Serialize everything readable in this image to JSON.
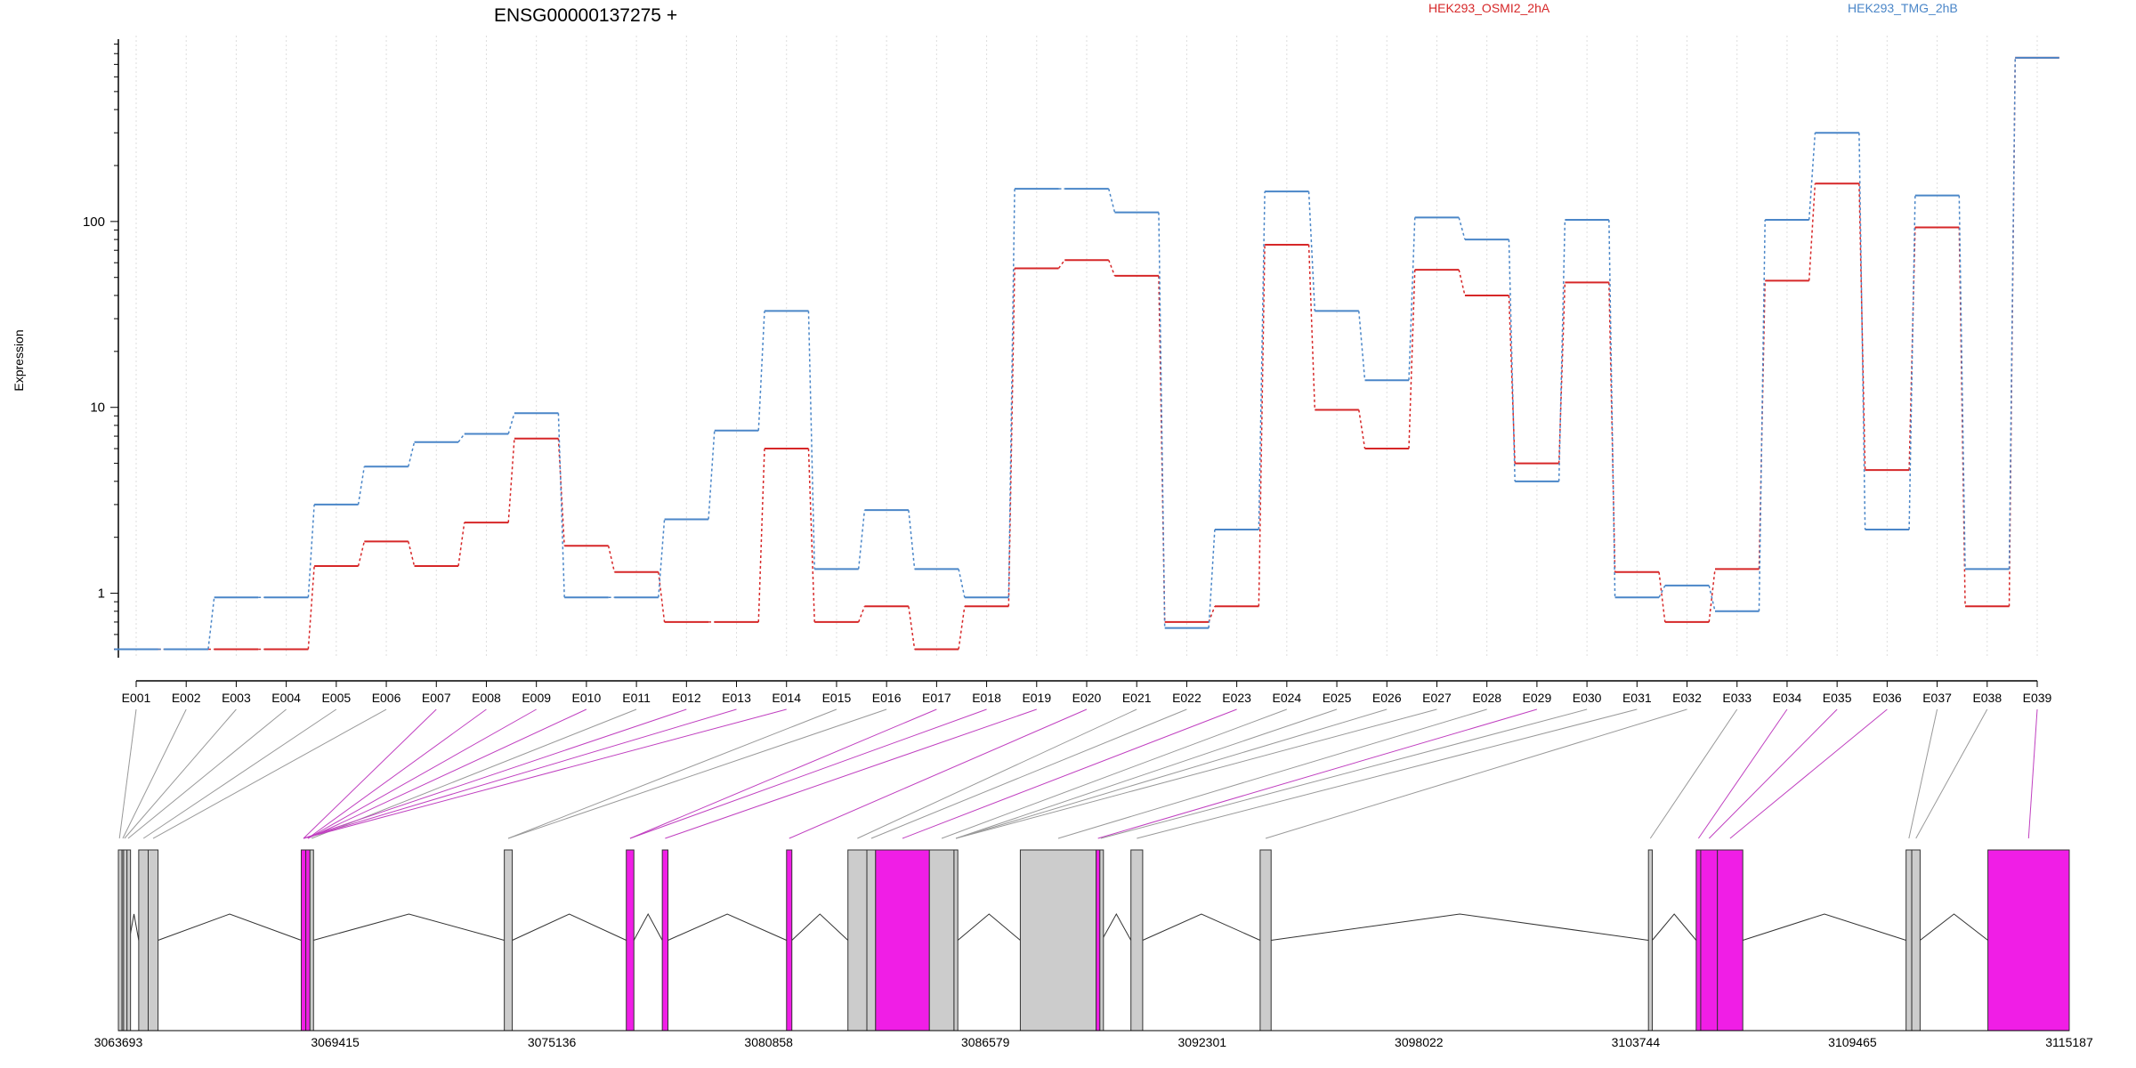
{
  "chart_data": {
    "type": "line",
    "title": "ENSG00000137275 +",
    "ylabel": "Expression",
    "y_scale": "log",
    "ylim": [
      0.45,
      1000
    ],
    "y_ticks": [
      {
        "value": 1,
        "label": "1"
      },
      {
        "value": 10,
        "label": "10"
      },
      {
        "value": 100,
        "label": "100"
      }
    ],
    "grid": "vertical dotted",
    "legend_position": "top-right",
    "categories": [
      "E001",
      "E002",
      "E003",
      "E004",
      "E005",
      "E006",
      "E007",
      "E008",
      "E009",
      "E010",
      "E011",
      "E012",
      "E013",
      "E014",
      "E015",
      "E016",
      "E017",
      "E018",
      "E019",
      "E020",
      "E021",
      "E022",
      "E023",
      "E024",
      "E025",
      "E026",
      "E027",
      "E028",
      "E029",
      "E030",
      "E031",
      "E032",
      "E033",
      "E034",
      "E035",
      "E036",
      "E037",
      "E038",
      "E039"
    ],
    "series": [
      {
        "name": "HEK293_OSMI2_2hA",
        "color": "#d62728",
        "values": [
          0.5,
          0.5,
          0.5,
          0.5,
          1.4,
          1.9,
          1.4,
          2.4,
          6.8,
          1.8,
          1.3,
          0.7,
          0.7,
          6.0,
          0.7,
          0.85,
          0.5,
          0.85,
          56,
          62,
          51,
          0.7,
          0.85,
          75,
          9.7,
          6.0,
          55,
          40,
          5.0,
          47,
          1.3,
          0.7,
          1.35,
          48,
          160,
          4.6,
          93,
          0.85,
          760
        ]
      },
      {
        "name": "HEK293_TMG_2hB",
        "color": "#4a86c8",
        "values": [
          0.5,
          0.5,
          0.95,
          0.95,
          3.0,
          4.8,
          6.5,
          7.2,
          9.3,
          0.95,
          0.95,
          2.5,
          7.5,
          33,
          1.35,
          2.8,
          1.35,
          0.95,
          150,
          150,
          112,
          0.65,
          2.2,
          145,
          33,
          14,
          105,
          80,
          4.0,
          102,
          0.95,
          1.1,
          0.8,
          102,
          300,
          2.2,
          138,
          1.35,
          760
        ]
      }
    ],
    "gene_model": {
      "x_ticks": [
        {
          "value": 3063693,
          "label": "3063693"
        },
        {
          "value": 3069415,
          "label": "3069415"
        },
        {
          "value": 3075136,
          "label": "3075136"
        },
        {
          "value": 3080858,
          "label": "3080858"
        },
        {
          "value": 3086579,
          "label": "3086579"
        },
        {
          "value": 3092301,
          "label": "3092301"
        },
        {
          "value": 3098022,
          "label": "3098022"
        },
        {
          "value": 3103744,
          "label": "3103744"
        },
        {
          "value": 3109465,
          "label": "3109465"
        },
        {
          "value": 3115187,
          "label": "3115187"
        }
      ],
      "xlim": [
        3063693,
        3115187
      ],
      "exons": [
        {
          "id": "E001",
          "start": 3063693,
          "end": 3063750,
          "sig": false
        },
        {
          "id": "E002",
          "start": 3063790,
          "end": 3063830,
          "sig": false
        },
        {
          "id": "E003",
          "start": 3063830,
          "end": 3063880,
          "sig": false
        },
        {
          "id": "E004",
          "start": 3063920,
          "end": 3063980,
          "sig": false
        },
        {
          "id": "E005",
          "start": 3064230,
          "end": 3064480,
          "sig": false
        },
        {
          "id": "E006",
          "start": 3064480,
          "end": 3064740,
          "sig": false
        },
        {
          "id": "E007",
          "start": 3068520,
          "end": 3068640,
          "sig": true
        },
        {
          "id": "E008",
          "start": 3068640,
          "end": 3068750,
          "sig": true
        },
        {
          "id": "E009",
          "start": 3068750,
          "end": 3068840,
          "sig": false
        },
        {
          "id": "E010",
          "start": 3073880,
          "end": 3074090,
          "sig": false
        },
        {
          "id": "E011",
          "start": 3077100,
          "end": 3077300,
          "sig": true
        },
        {
          "id": "E012",
          "start": 3078050,
          "end": 3078200,
          "sig": true
        },
        {
          "id": "E013",
          "start": 3081330,
          "end": 3081470,
          "sig": true
        },
        {
          "id": "E014",
          "start": 3082950,
          "end": 3083450,
          "sig": false
        },
        {
          "id": "E015",
          "start": 3083450,
          "end": 3083680,
          "sig": false
        },
        {
          "id": "E016",
          "start": 3083680,
          "end": 3085100,
          "sig": true
        },
        {
          "id": "E017",
          "start": 3085100,
          "end": 3085750,
          "sig": false
        },
        {
          "id": "E018",
          "start": 3085750,
          "end": 3085850,
          "sig": false
        },
        {
          "id": "E019",
          "start": 3087500,
          "end": 3089500,
          "sig": false
        },
        {
          "id": "E020",
          "start": 3089500,
          "end": 3089600,
          "sig": true
        },
        {
          "id": "E021",
          "start": 3089600,
          "end": 3089650,
          "sig": false
        },
        {
          "id": "E022",
          "start": 3090420,
          "end": 3090730,
          "sig": false
        },
        {
          "id": "E023",
          "start": 3093830,
          "end": 3094120,
          "sig": false
        },
        {
          "id": "E024",
          "start": 3104080,
          "end": 3104180,
          "sig": false
        },
        {
          "id": "E025",
          "start": 3105340,
          "end": 3105460,
          "sig": true
        },
        {
          "id": "E026",
          "start": 3105460,
          "end": 3105900,
          "sig": true
        },
        {
          "id": "E027",
          "start": 3105900,
          "end": 3106570,
          "sig": true
        },
        {
          "id": "E028",
          "start": 3110880,
          "end": 3111030,
          "sig": false
        },
        {
          "id": "E029",
          "start": 3111030,
          "end": 3111250,
          "sig": false
        },
        {
          "id": "E030",
          "start": 3113040,
          "end": 3115187,
          "sig": true
        }
      ]
    },
    "connectors": [
      {
        "from": "E001",
        "to": 0
      },
      {
        "from": "E002",
        "to": 1
      },
      {
        "from": "E003",
        "to": 2
      },
      {
        "from": "E004",
        "to": 3
      },
      {
        "from": "E005",
        "to": 4
      },
      {
        "from": "E006",
        "to": 5
      },
      {
        "from": "E007",
        "to": 6
      },
      {
        "from": "E008",
        "to": 7
      },
      {
        "from": "E009",
        "to": 7
      },
      {
        "from": "E010",
        "to": 7
      },
      {
        "from": "E011",
        "to": 8
      },
      {
        "from": "E012",
        "to": 6
      },
      {
        "from": "E013",
        "to": 6
      },
      {
        "from": "E014",
        "to": 6
      },
      {
        "from": "E015",
        "to": 9
      },
      {
        "from": "E016",
        "to": 9
      },
      {
        "from": "E017",
        "to": 10
      },
      {
        "from": "E018",
        "to": 10
      },
      {
        "from": "E019",
        "to": 11
      },
      {
        "from": "E020",
        "to": 12
      },
      {
        "from": "E021",
        "to": 13
      },
      {
        "from": "E022",
        "to": 14
      },
      {
        "from": "E023",
        "to": 15
      },
      {
        "from": "E024",
        "to": 16
      },
      {
        "from": "E025",
        "to": 17
      },
      {
        "from": "E026",
        "to": 17
      },
      {
        "from": "E027",
        "to": 17
      },
      {
        "from": "E028",
        "to": 18
      },
      {
        "from": "E029",
        "to": 19
      },
      {
        "from": "E030",
        "to": 20
      },
      {
        "from": "E031",
        "to": 21
      },
      {
        "from": "E032",
        "to": 22
      },
      {
        "from": "E033",
        "to": 23
      },
      {
        "from": "E034",
        "to": 24
      },
      {
        "from": "E035",
        "to": 25
      },
      {
        "from": "E036",
        "to": 26
      },
      {
        "from": "E037",
        "to": 27
      },
      {
        "from": "E038",
        "to": 28
      },
      {
        "from": "E039",
        "to": 29
      }
    ],
    "colors": {
      "significant_exon": "#f01ee6",
      "normal_exon": "#cccccc",
      "outline": "#333333",
      "connector_normal": "#999999",
      "connector_significant": "#c040c0",
      "grid": "#dddddd"
    }
  }
}
